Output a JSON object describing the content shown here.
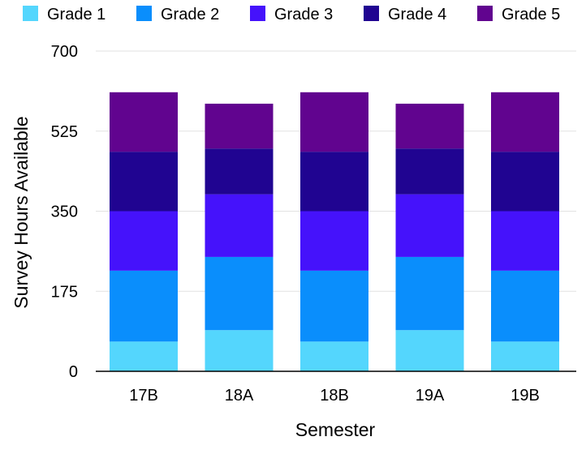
{
  "chart_data": {
    "type": "bar",
    "stacked": true,
    "categories": [
      "17B",
      "18A",
      "18B",
      "19A",
      "19B"
    ],
    "series": [
      {
        "name": "Grade 1",
        "color": "#54d6fd",
        "values": [
          65,
          90,
          65,
          90,
          65
        ]
      },
      {
        "name": "Grade 2",
        "color": "#0a8efc",
        "values": [
          155,
          160,
          155,
          160,
          155
        ]
      },
      {
        "name": "Grade 3",
        "color": "#4512fb",
        "values": [
          130,
          137,
          130,
          137,
          130
        ]
      },
      {
        "name": "Grade 4",
        "color": "#200491",
        "values": [
          130,
          100,
          130,
          100,
          130
        ]
      },
      {
        "name": "Grade 5",
        "color": "#61048f",
        "values": [
          130,
          98,
          130,
          98,
          130
        ]
      }
    ],
    "xlabel": "Semester",
    "ylabel": "Survey Hours Available",
    "ylim": [
      0,
      700
    ],
    "yticks": [
      0,
      175,
      350,
      525,
      700
    ],
    "grid": true,
    "legend_position": "top"
  }
}
